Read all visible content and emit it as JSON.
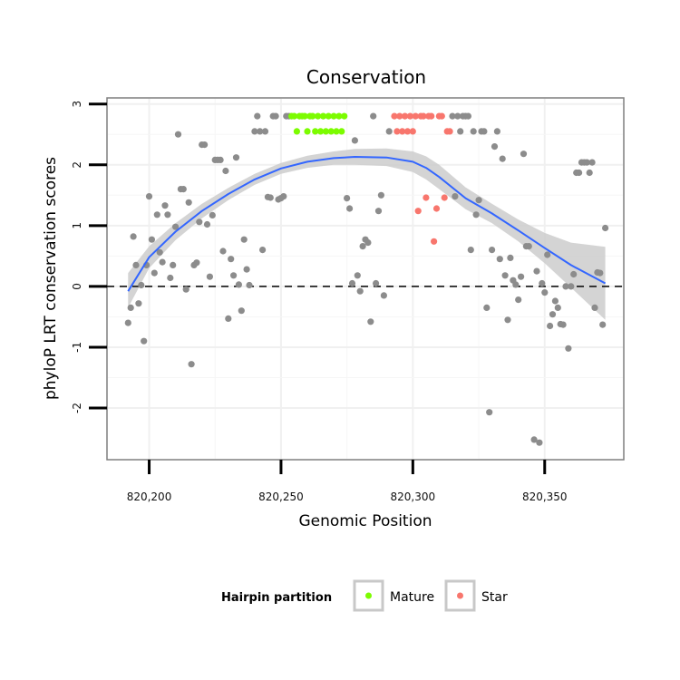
{
  "chart_data": {
    "type": "scatter",
    "title": "Conservation",
    "xlabel": "Genomic Position",
    "ylabel": "phyloP LRT conservation scores",
    "xlim": [
      820184,
      820380
    ],
    "ylim": [
      -2.85,
      3.1
    ],
    "xticks": [
      820200,
      820250,
      820300,
      820350
    ],
    "xtick_labels": [
      "820,200",
      "820,250",
      "820,300",
      "820,350"
    ],
    "yticks": [
      -2,
      -1,
      0,
      1,
      2,
      3
    ],
    "ytick_labels": [
      "-2",
      "-1",
      "0",
      "1",
      "2",
      "3"
    ],
    "reference_line": {
      "y": 0,
      "style": "dashed"
    },
    "legend": {
      "title": "Hairpin partition",
      "position": "bottom",
      "entries": [
        {
          "label": "Mature",
          "color": "#7CFC00"
        },
        {
          "label": "Star",
          "color": "#F8766D"
        }
      ]
    },
    "colors": {
      "other": "#8c8c8c",
      "Mature": "#7CFC00",
      "Star": "#F8766D",
      "smooth": "#3366FF",
      "ribbon": "#cccccc"
    },
    "series": [
      {
        "name": "Other",
        "points": [
          [
            820192,
            -0.6
          ],
          [
            820193,
            -0.35
          ],
          [
            820194,
            0.82
          ],
          [
            820195,
            0.35
          ],
          [
            820196,
            -0.28
          ],
          [
            820197,
            0.02
          ],
          [
            820198,
            -0.9
          ],
          [
            820199,
            0.35
          ],
          [
            820200,
            1.48
          ],
          [
            820201,
            0.77
          ],
          [
            820202,
            0.22
          ],
          [
            820203,
            1.18
          ],
          [
            820204,
            0.56
          ],
          [
            820205,
            0.4
          ],
          [
            820206,
            1.33
          ],
          [
            820207,
            1.18
          ],
          [
            820208,
            0.14
          ],
          [
            820209,
            0.35
          ],
          [
            820210,
            0.98
          ],
          [
            820211,
            2.5
          ],
          [
            820212,
            1.6
          ],
          [
            820213,
            1.6
          ],
          [
            820214,
            -0.05
          ],
          [
            820215,
            1.38
          ],
          [
            820216,
            -1.28
          ],
          [
            820217,
            0.35
          ],
          [
            820218,
            0.39
          ],
          [
            820219,
            1.06
          ],
          [
            820220,
            2.33
          ],
          [
            820221,
            2.33
          ],
          [
            820222,
            1.02
          ],
          [
            820223,
            0.16
          ],
          [
            820224,
            1.17
          ],
          [
            820225,
            2.08
          ],
          [
            820226,
            2.08
          ],
          [
            820227,
            2.08
          ],
          [
            820228,
            0.58
          ],
          [
            820229,
            1.9
          ],
          [
            820230,
            -0.53
          ],
          [
            820231,
            0.45
          ],
          [
            820232,
            0.18
          ],
          [
            820233,
            2.12
          ],
          [
            820234,
            0.03
          ],
          [
            820235,
            -0.4
          ],
          [
            820236,
            0.77
          ],
          [
            820237,
            0.28
          ],
          [
            820238,
            0.02
          ],
          [
            820240,
            2.55
          ],
          [
            820241,
            2.8
          ],
          [
            820242,
            2.55
          ],
          [
            820243,
            0.6
          ],
          [
            820244,
            2.55
          ],
          [
            820245,
            1.47
          ],
          [
            820246,
            1.46
          ],
          [
            820247,
            2.8
          ],
          [
            820248,
            2.8
          ],
          [
            820249,
            1.43
          ],
          [
            820250,
            1.45
          ],
          [
            820251,
            1.48
          ],
          [
            820252,
            2.8
          ],
          [
            820253,
            2.8
          ],
          [
            820275,
            1.45
          ],
          [
            820276,
            1.28
          ],
          [
            820277,
            0.05
          ],
          [
            820278,
            2.4
          ],
          [
            820279,
            0.18
          ],
          [
            820280,
            -0.08
          ],
          [
            820281,
            0.66
          ],
          [
            820282,
            0.77
          ],
          [
            820283,
            0.72
          ],
          [
            820284,
            -0.58
          ],
          [
            820285,
            2.8
          ],
          [
            820286,
            0.05
          ],
          [
            820287,
            1.24
          ],
          [
            820288,
            1.5
          ],
          [
            820289,
            -0.15
          ],
          [
            820291,
            2.55
          ],
          [
            820315,
            2.8
          ],
          [
            820316,
            1.48
          ],
          [
            820317,
            2.8
          ],
          [
            820318,
            2.55
          ],
          [
            820319,
            2.8
          ],
          [
            820320,
            2.8
          ],
          [
            820321,
            2.8
          ],
          [
            820322,
            0.6
          ],
          [
            820323,
            2.55
          ],
          [
            820324,
            1.18
          ],
          [
            820325,
            1.42
          ],
          [
            820326,
            2.55
          ],
          [
            820327,
            2.55
          ],
          [
            820328,
            -0.35
          ],
          [
            820329,
            -2.07
          ],
          [
            820330,
            0.6
          ],
          [
            820331,
            2.3
          ],
          [
            820332,
            2.55
          ],
          [
            820333,
            0.45
          ],
          [
            820334,
            2.1
          ],
          [
            820335,
            0.18
          ],
          [
            820336,
            -0.55
          ],
          [
            820337,
            0.47
          ],
          [
            820338,
            0.1
          ],
          [
            820339,
            0.03
          ],
          [
            820340,
            -0.22
          ],
          [
            820341,
            0.16
          ],
          [
            820342,
            2.18
          ],
          [
            820343,
            0.66
          ],
          [
            820344,
            0.66
          ],
          [
            820346,
            -2.52
          ],
          [
            820347,
            0.25
          ],
          [
            820348,
            -2.57
          ],
          [
            820349,
            0.05
          ],
          [
            820350,
            -0.1
          ],
          [
            820351,
            0.52
          ],
          [
            820352,
            -0.65
          ],
          [
            820353,
            -0.46
          ],
          [
            820354,
            -0.24
          ],
          [
            820355,
            -0.35
          ],
          [
            820356,
            -0.62
          ],
          [
            820357,
            -0.63
          ],
          [
            820358,
            0.0
          ],
          [
            820359,
            -1.02
          ],
          [
            820360,
            0.0
          ],
          [
            820361,
            0.2
          ],
          [
            820362,
            1.87
          ],
          [
            820363,
            1.87
          ],
          [
            820364,
            2.04
          ],
          [
            820365,
            2.04
          ],
          [
            820366,
            2.04
          ],
          [
            820367,
            1.87
          ],
          [
            820368,
            2.04
          ],
          [
            820369,
            -0.35
          ],
          [
            820370,
            0.23
          ],
          [
            820371,
            0.22
          ],
          [
            820372,
            -0.63
          ],
          [
            820373,
            0.96
          ]
        ]
      },
      {
        "name": "Mature",
        "points": [
          [
            820254,
            2.8
          ],
          [
            820255,
            2.8
          ],
          [
            820256,
            2.55
          ],
          [
            820257,
            2.8
          ],
          [
            820258,
            2.8
          ],
          [
            820259,
            2.8
          ],
          [
            820260,
            2.55
          ],
          [
            820261,
            2.8
          ],
          [
            820262,
            2.8
          ],
          [
            820263,
            2.55
          ],
          [
            820264,
            2.8
          ],
          [
            820265,
            2.55
          ],
          [
            820266,
            2.8
          ],
          [
            820267,
            2.55
          ],
          [
            820268,
            2.8
          ],
          [
            820269,
            2.55
          ],
          [
            820270,
            2.8
          ],
          [
            820271,
            2.55
          ],
          [
            820272,
            2.8
          ],
          [
            820273,
            2.55
          ],
          [
            820274,
            2.8
          ]
        ]
      },
      {
        "name": "Star",
        "points": [
          [
            820293,
            2.8
          ],
          [
            820294,
            2.55
          ],
          [
            820295,
            2.8
          ],
          [
            820296,
            2.55
          ],
          [
            820297,
            2.8
          ],
          [
            820298,
            2.55
          ],
          [
            820299,
            2.8
          ],
          [
            820300,
            2.55
          ],
          [
            820301,
            2.8
          ],
          [
            820302,
            1.24
          ],
          [
            820303,
            2.8
          ],
          [
            820304,
            2.8
          ],
          [
            820305,
            1.46
          ],
          [
            820306,
            2.8
          ],
          [
            820307,
            2.8
          ],
          [
            820308,
            0.74
          ],
          [
            820309,
            1.28
          ],
          [
            820310,
            2.8
          ],
          [
            820311,
            2.8
          ],
          [
            820312,
            1.46
          ],
          [
            820313,
            2.55
          ],
          [
            820314,
            2.55
          ]
        ]
      }
    ],
    "smooth": {
      "x": [
        820192,
        820200,
        820210,
        820220,
        820230,
        820240,
        820250,
        820260,
        820270,
        820278,
        820290,
        820300,
        820305,
        820310,
        820320,
        820330,
        820340,
        820350,
        820360,
        820373
      ],
      "y": [
        -0.08,
        0.48,
        0.9,
        1.24,
        1.52,
        1.76,
        1.94,
        2.05,
        2.11,
        2.13,
        2.12,
        2.05,
        1.95,
        1.8,
        1.45,
        1.2,
        0.92,
        0.63,
        0.35,
        0.05
      ],
      "lo": [
        -0.35,
        0.3,
        0.76,
        1.12,
        1.42,
        1.67,
        1.85,
        1.95,
        2.0,
        2.0,
        1.98,
        1.88,
        1.76,
        1.6,
        1.27,
        1.04,
        0.74,
        0.38,
        -0.02,
        -0.55
      ],
      "hi": [
        0.22,
        0.66,
        1.04,
        1.36,
        1.62,
        1.85,
        2.03,
        2.15,
        2.22,
        2.26,
        2.27,
        2.22,
        2.14,
        2.0,
        1.63,
        1.36,
        1.1,
        0.88,
        0.72,
        0.65
      ]
    }
  }
}
